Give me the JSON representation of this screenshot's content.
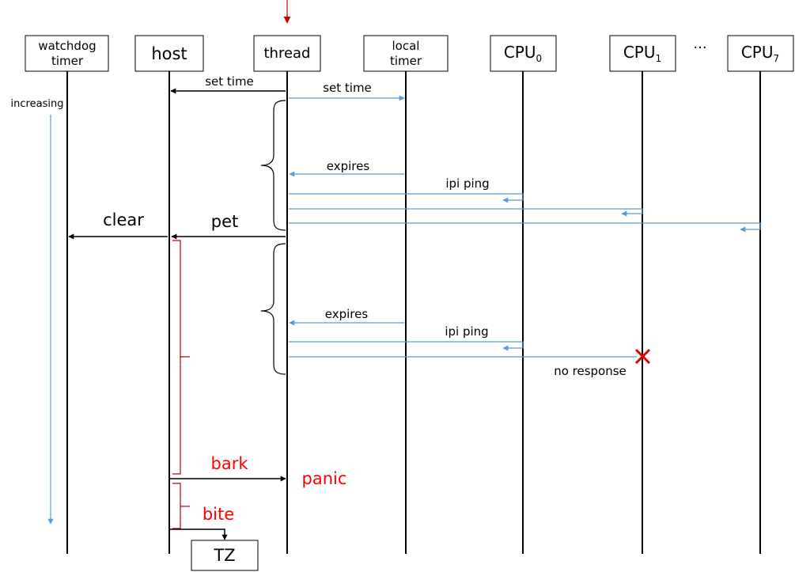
{
  "participants": {
    "watchdog_line1": "watchdog",
    "watchdog_line2": "timer",
    "host": "host",
    "thread": "thread",
    "local_line1": "local",
    "local_line2": "timer",
    "cpu0_base": "CPU",
    "cpu0_sub": "0",
    "cpu1_base": "CPU",
    "cpu1_sub": "1",
    "ellipsis": "···",
    "cpu7_base": "CPU",
    "cpu7_sub": "7",
    "tz": "TZ"
  },
  "time_axis": {
    "label": "increasing"
  },
  "messages": {
    "set_time_host": "set time",
    "set_time_local": "set time",
    "expires_1": "expires",
    "ipi_ping_1": "ipi ping",
    "clear": "clear",
    "pet": "pet",
    "expires_2": "expires",
    "ipi_ping_2": "ipi ping",
    "no_response": "no response",
    "bark": "bark",
    "panic": "panic",
    "bite": "bite"
  },
  "colors": {
    "message_blue": "#5b9bd5",
    "alert_red": "#ff0000",
    "bracket_red": "#c00000"
  }
}
